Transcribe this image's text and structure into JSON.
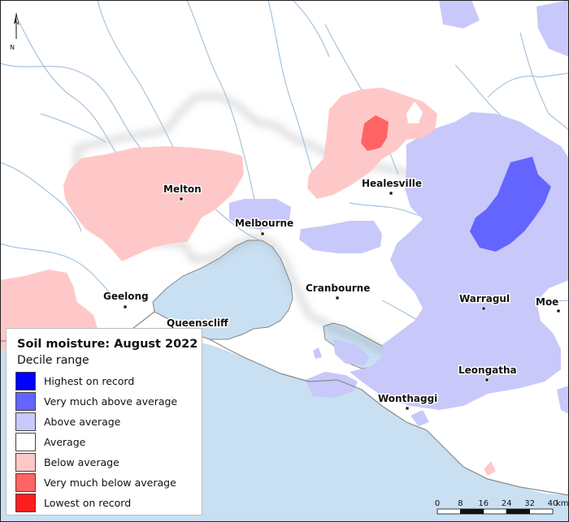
{
  "map": {
    "colors": {
      "sea": "#c9dff2",
      "land": "#ffffff",
      "river": "#a8c3de",
      "highest_on_record": "#0000ff",
      "very_much_above_average": "#6464ff",
      "above_average": "#c8c8fa",
      "average": "#ffffff",
      "below_average": "#ffc8c8",
      "very_much_below_average": "#ff6464",
      "lowest_on_record": "#ff1e1e"
    },
    "towns": [
      {
        "id": "melton",
        "name": "Melton"
      },
      {
        "id": "melbourne",
        "name": "Melbourne"
      },
      {
        "id": "healesville",
        "name": "Healesville"
      },
      {
        "id": "geelong",
        "name": "Geelong"
      },
      {
        "id": "queenscliff",
        "name": "Queenscliff"
      },
      {
        "id": "cranbourne",
        "name": "Cranbourne"
      },
      {
        "id": "warragul",
        "name": "Warragul"
      },
      {
        "id": "moe",
        "name": "Moe"
      },
      {
        "id": "leongatha",
        "name": "Leongatha"
      },
      {
        "id": "wonthaggi",
        "name": "Wonthaggi"
      }
    ],
    "north_arrow": {
      "label": "N",
      "icon": "north-arrow-icon"
    },
    "scale_bar": {
      "ticks": [
        "0",
        "8",
        "16",
        "24",
        "32",
        "40"
      ],
      "unit": "km"
    }
  },
  "legend": {
    "title": "Soil moisture: August 2022",
    "subtitle": "Decile range",
    "items": [
      {
        "label": "Highest on record",
        "color": "#0000ff"
      },
      {
        "label": "Very much above average",
        "color": "#6464ff"
      },
      {
        "label": "Above average",
        "color": "#c8c8fa"
      },
      {
        "label": "Average",
        "color": "#ffffff"
      },
      {
        "label": "Below average",
        "color": "#ffc8c8"
      },
      {
        "label": "Very much below average",
        "color": "#ff6464"
      },
      {
        "label": "Lowest on record",
        "color": "#ff1e1e"
      }
    ]
  }
}
